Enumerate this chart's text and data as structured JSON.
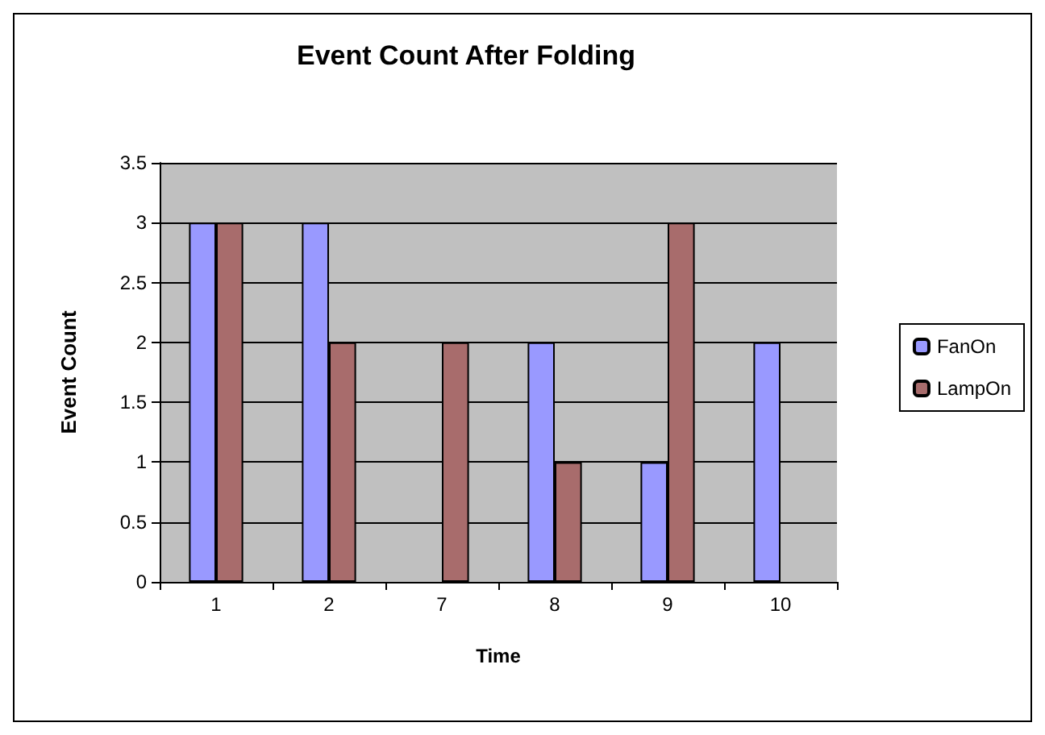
{
  "chart_data": {
    "type": "bar",
    "title": "Event Count After Folding",
    "xlabel": "Time",
    "ylabel": "Event Count",
    "categories": [
      "1",
      "2",
      "7",
      "8",
      "9",
      "10"
    ],
    "series": [
      {
        "name": "FanOn",
        "color": "#9999ff",
        "values": [
          3,
          3,
          null,
          2,
          1,
          2
        ]
      },
      {
        "name": "LampOn",
        "color": "#a86c6c",
        "values": [
          3,
          2,
          2,
          1,
          3,
          null
        ]
      }
    ],
    "ylim": [
      0,
      3.5
    ],
    "yticks": [
      0,
      0.5,
      1,
      1.5,
      2,
      2.5,
      3,
      3.5
    ],
    "grid": "y",
    "legend": "right"
  }
}
